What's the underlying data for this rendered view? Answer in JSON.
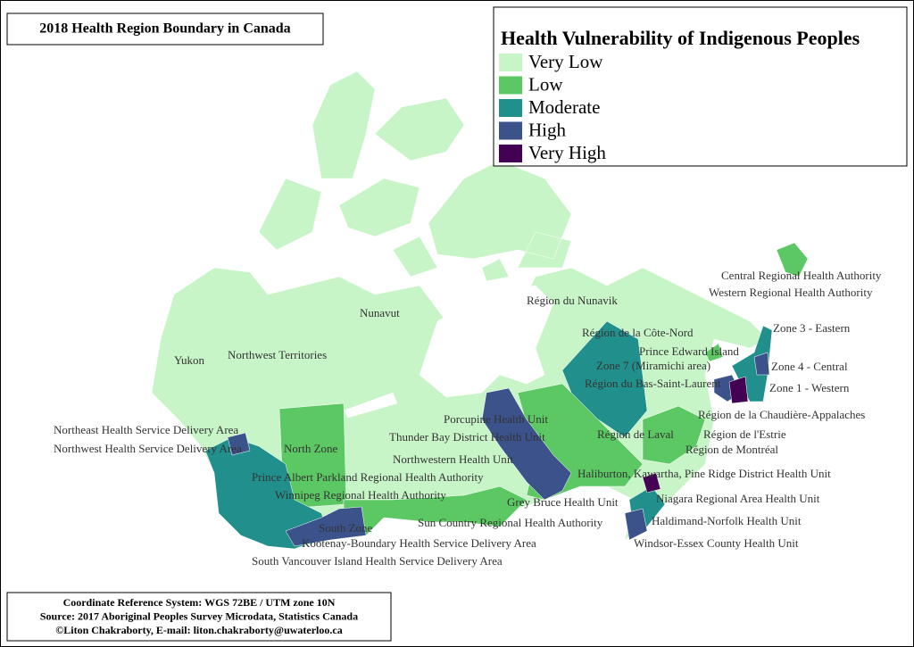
{
  "header": {
    "title": "2018 Health Region Boundary in Canada"
  },
  "legend": {
    "title": "Health Vulnerability of Indigenous Peoples",
    "items": [
      {
        "label": "Very Low",
        "color": "#c8f5c8"
      },
      {
        "label": "Low",
        "color": "#5cc863"
      },
      {
        "label": "Moderate",
        "color": "#21908d"
      },
      {
        "label": "High",
        "color": "#3b528b"
      },
      {
        "label": "Very High",
        "color": "#440154"
      }
    ]
  },
  "regions": [
    "Central Regional Health Authority",
    "Western Regional Health Authority",
    "Région du Nunavik",
    "Nunavut",
    "Région de la Côte-Nord",
    "Zone 3 - Eastern",
    "Yukon",
    "Northwest Territories",
    "Prince Edward Island",
    "Zone 7 (Miramichi area)",
    "Zone 4 - Central",
    "Région du Bas-Saint-Laurent",
    "Zone 1 - Western",
    "Région de la Chaudière-Appalaches",
    "Porcupine Health Unit",
    "Northeast Health Service Delivery Area",
    "Thunder Bay District Health Unit",
    "Région de Laval",
    "Région de l'Estrie",
    "Northwest Health Service Delivery Area",
    "North Zone",
    "Région de Montréal",
    "Northwestern Health Unit",
    "Haliburton, Kawartha, Pine Ridge District Health Unit",
    "Prince Albert Parkland Regional Health Authority",
    "Winnipeg Regional Health Authority",
    "Niagara Regional Area Health Unit",
    "Grey Bruce Health Unit",
    "Haldimand-Norfolk Health Unit",
    "Sun Country Regional Health Authority",
    "South Zone",
    "Kootenay-Boundary Health Service Delivery Area",
    "Windsor-Essex County Health Unit",
    "South Vancouver Island Health Service Delivery Area"
  ],
  "footer": {
    "lines": [
      "Coordinate Reference System: WGS 72BE / UTM zone 10N",
      "Source: 2017 Aboriginal Peoples Survey Microdata, Statistics Canada",
      "©Liton Chakraborty, E-mail: liton.chakraborty@uwaterloo.ca"
    ]
  }
}
